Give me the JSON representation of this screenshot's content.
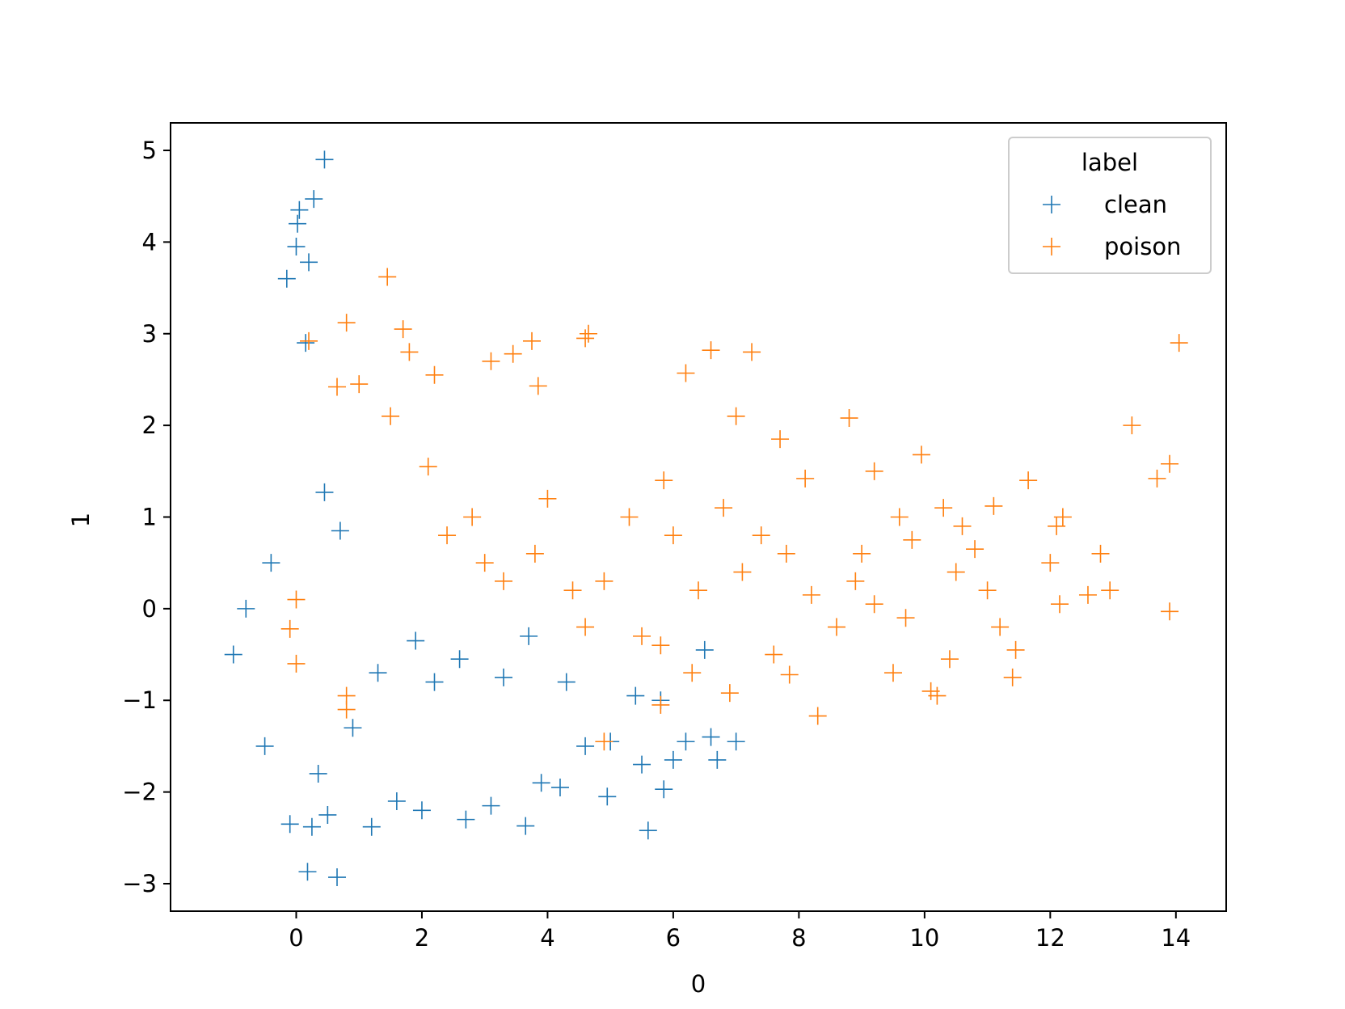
{
  "chart_data": {
    "type": "scatter",
    "marker": "+",
    "xlabel": "0",
    "ylabel": "1",
    "xlim": [
      -2.0,
      14.8
    ],
    "ylim": [
      -3.3,
      5.3
    ],
    "xticks": [
      0,
      2,
      4,
      6,
      8,
      10,
      12,
      14
    ],
    "xtick_labels": [
      "0",
      "2",
      "4",
      "6",
      "8",
      "10",
      "12",
      "14"
    ],
    "yticks": [
      5,
      4,
      3,
      2,
      1,
      0,
      -1,
      -2,
      -3
    ],
    "ytick_labels": [
      "5",
      "4",
      "3",
      "2",
      "1",
      "0",
      "−1",
      "−2",
      "−3"
    ],
    "grid": false,
    "legend": {
      "title": "label",
      "placement": "top-right",
      "entries": [
        "clean",
        "poison"
      ]
    },
    "series": [
      {
        "name": "clean",
        "color": "#1f77b4",
        "points": [
          [
            0.45,
            4.9
          ],
          [
            0.28,
            4.47
          ],
          [
            0.05,
            4.35
          ],
          [
            0.02,
            4.2
          ],
          [
            0.0,
            3.95
          ],
          [
            0.2,
            3.78
          ],
          [
            -0.15,
            3.6
          ],
          [
            0.15,
            2.9
          ],
          [
            0.65,
            -2.93
          ],
          [
            0.18,
            -2.87
          ],
          [
            -0.1,
            -2.35
          ],
          [
            0.25,
            -2.38
          ],
          [
            1.2,
            -2.38
          ],
          [
            2.7,
            -2.3
          ],
          [
            3.65,
            -2.37
          ],
          [
            5.6,
            -2.42
          ],
          [
            5.85,
            -1.97
          ],
          [
            6.0,
            -1.65
          ],
          [
            6.7,
            -1.65
          ],
          [
            7.0,
            -1.45
          ],
          [
            6.6,
            -1.4
          ],
          [
            6.2,
            -1.45
          ],
          [
            5.5,
            -1.7
          ],
          [
            4.95,
            -2.05
          ],
          [
            4.2,
            -1.95
          ],
          [
            3.9,
            -1.9
          ],
          [
            3.1,
            -2.15
          ],
          [
            2.0,
            -2.2
          ],
          [
            1.6,
            -2.1
          ],
          [
            0.5,
            -2.25
          ],
          [
            0.45,
            1.27
          ],
          [
            0.7,
            0.85
          ],
          [
            1.3,
            -0.7
          ],
          [
            1.9,
            -0.35
          ],
          [
            2.6,
            -0.55
          ],
          [
            3.3,
            -0.75
          ],
          [
            4.3,
            -0.8
          ],
          [
            5.0,
            -1.45
          ],
          [
            4.6,
            -1.5
          ],
          [
            5.4,
            -0.95
          ],
          [
            6.5,
            -0.45
          ],
          [
            5.8,
            -1.0
          ],
          [
            3.7,
            -0.3
          ],
          [
            2.2,
            -0.8
          ],
          [
            0.9,
            -1.3
          ],
          [
            0.35,
            -1.8
          ],
          [
            -0.4,
            0.5
          ],
          [
            -0.8,
            0.0
          ],
          [
            -1.0,
            -0.5
          ],
          [
            -0.5,
            -1.5
          ]
        ]
      },
      {
        "name": "poison",
        "color": "#ff7f0e",
        "points": [
          [
            14.05,
            2.9
          ],
          [
            13.3,
            2.0
          ],
          [
            13.9,
            1.58
          ],
          [
            13.7,
            1.42
          ],
          [
            13.9,
            -0.03
          ],
          [
            12.95,
            0.2
          ],
          [
            12.8,
            0.6
          ],
          [
            12.6,
            0.15
          ],
          [
            12.2,
            1.0
          ],
          [
            12.1,
            0.9
          ],
          [
            12.15,
            0.05
          ],
          [
            11.65,
            1.4
          ],
          [
            11.45,
            -0.45
          ],
          [
            11.2,
            -0.2
          ],
          [
            11.4,
            -0.75
          ],
          [
            11.1,
            1.12
          ],
          [
            10.8,
            0.65
          ],
          [
            10.5,
            0.4
          ],
          [
            10.3,
            1.1
          ],
          [
            10.2,
            -0.95
          ],
          [
            10.1,
            -0.9
          ],
          [
            9.95,
            1.68
          ],
          [
            9.8,
            0.75
          ],
          [
            9.7,
            -0.1
          ],
          [
            9.5,
            -0.7
          ],
          [
            9.2,
            1.5
          ],
          [
            9.0,
            0.6
          ],
          [
            8.8,
            2.08
          ],
          [
            8.3,
            -1.17
          ],
          [
            8.1,
            1.42
          ],
          [
            7.85,
            -0.72
          ],
          [
            7.7,
            1.85
          ],
          [
            7.4,
            0.8
          ],
          [
            7.25,
            2.8
          ],
          [
            7.0,
            2.1
          ],
          [
            6.9,
            -0.92
          ],
          [
            6.6,
            2.82
          ],
          [
            6.2,
            2.57
          ],
          [
            6.0,
            0.8
          ],
          [
            5.85,
            1.4
          ],
          [
            5.5,
            -0.3
          ],
          [
            4.6,
            2.95
          ],
          [
            4.65,
            3.0
          ],
          [
            3.85,
            2.43
          ],
          [
            3.75,
            2.92
          ],
          [
            3.45,
            2.78
          ],
          [
            3.1,
            2.7
          ],
          [
            2.2,
            2.55
          ],
          [
            1.8,
            2.8
          ],
          [
            1.45,
            3.62
          ],
          [
            1.7,
            3.05
          ],
          [
            0.8,
            3.12
          ],
          [
            0.2,
            2.92
          ],
          [
            0.65,
            2.42
          ],
          [
            1.0,
            2.45
          ],
          [
            1.5,
            2.1
          ],
          [
            2.1,
            1.55
          ],
          [
            2.8,
            1.0
          ],
          [
            3.3,
            0.3
          ],
          [
            3.8,
            0.6
          ],
          [
            4.4,
            0.2
          ],
          [
            4.9,
            0.3
          ],
          [
            5.3,
            1.0
          ],
          [
            6.4,
            0.2
          ],
          [
            7.1,
            0.4
          ],
          [
            8.2,
            0.15
          ],
          [
            8.9,
            0.3
          ],
          [
            9.6,
            1.0
          ],
          [
            10.6,
            0.9
          ],
          [
            11.0,
            0.2
          ],
          [
            2.4,
            0.8
          ],
          [
            3.0,
            0.5
          ],
          [
            4.0,
            1.2
          ],
          [
            4.6,
            -0.2
          ],
          [
            5.8,
            -0.4
          ],
          [
            6.8,
            1.1
          ],
          [
            7.8,
            0.6
          ],
          [
            8.6,
            -0.2
          ],
          [
            0.0,
            0.1
          ],
          [
            -0.1,
            -0.22
          ],
          [
            0.0,
            -0.6
          ],
          [
            0.8,
            -1.1
          ],
          [
            0.8,
            -0.95
          ],
          [
            4.9,
            -1.45
          ],
          [
            5.8,
            -1.05
          ],
          [
            6.3,
            -0.7
          ],
          [
            7.6,
            -0.5
          ],
          [
            9.2,
            0.05
          ],
          [
            10.4,
            -0.55
          ],
          [
            12.0,
            0.5
          ]
        ]
      }
    ]
  }
}
